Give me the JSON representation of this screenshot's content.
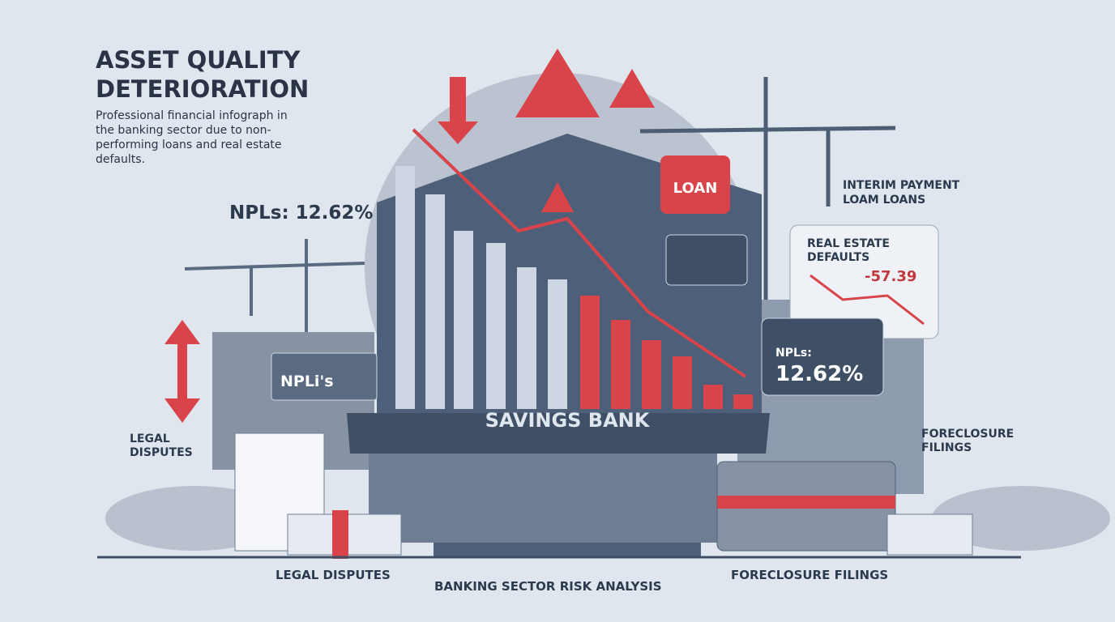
{
  "header": {
    "title": "ASSET QUALITY DETERIORATION",
    "subtitle": "Professional financial infograph in the banking sector due to non-performing loans and real estate defaults."
  },
  "callouts": {
    "npl_left": "NPLs: 12.62%",
    "loan_sign": "LOAN",
    "interim": "INTERIM PAYMENT LOAM LOANS",
    "real_estate": "REAL ESTATE DEFAULTS",
    "real_estate_value": "-57.39",
    "npl_window_label": "NPLs:",
    "npl_window_value": "12.62%",
    "npl_sign": "NPLi's",
    "bank_sign": "SAVINGS BANK",
    "legal_side": "LEGAL DISPUTES",
    "foreclosure_side": "FORECLOSURE FILINGS"
  },
  "footer": {
    "left": "LEGAL DISPUTES",
    "center": "BANKING SECTOR RISK ANALYSIS",
    "right": "FORECLOSURE FILINGS"
  }
}
